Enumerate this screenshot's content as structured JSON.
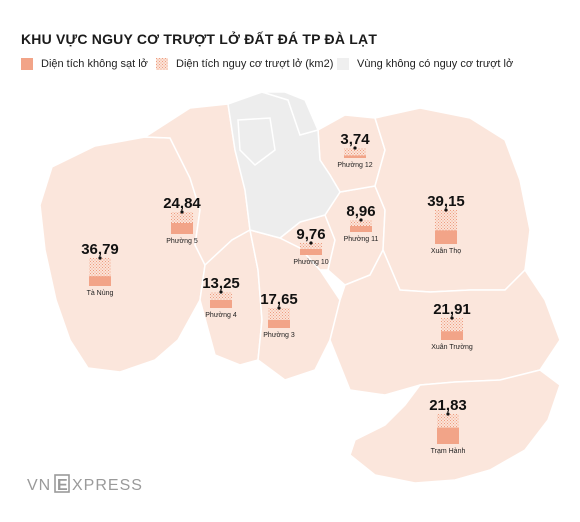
{
  "title": "KHU VỰC NGUY CƠ TRƯỢT LỞ ĐẤT ĐÁ TP ĐÀ LẠT",
  "legend": [
    {
      "label": "Diện tích không sạt lở",
      "color": "#f2a488"
    },
    {
      "label": "Diện tích nguy cơ trượt lở (km2)",
      "color": "#fbe3d8"
    },
    {
      "label": "Vùng không có nguy cơ trượt lở",
      "color": "#efefef"
    }
  ],
  "colors": {
    "risk": "#fbe6dc",
    "safe": "#ededed",
    "solid": "#f2a488",
    "hatch": "#f0a586",
    "border": "#ffffff"
  },
  "regions": [
    {
      "id": "phuong-12",
      "name": "Phường 12",
      "value": "3,74",
      "safe_fraction": 0.25
    },
    {
      "id": "xuan-tho",
      "name": "Xuân Thọ",
      "value": "39,15",
      "safe_fraction": 0.4
    },
    {
      "id": "phuong-5",
      "name": "Phường 5",
      "value": "24,84",
      "safe_fraction": 0.5
    },
    {
      "id": "phuong-11",
      "name": "Phường 11",
      "value": "8,96",
      "safe_fraction": 0.5
    },
    {
      "id": "phuong-10",
      "name": "Phường 10",
      "value": "9,76",
      "safe_fraction": 0.5
    },
    {
      "id": "ta-nung",
      "name": "Tà Nùng",
      "value": "36,79",
      "safe_fraction": 0.35
    },
    {
      "id": "phuong-4",
      "name": "Phường 4",
      "value": "13,25",
      "safe_fraction": 0.5
    },
    {
      "id": "phuong-3",
      "name": "Phường 3",
      "value": "17,65",
      "safe_fraction": 0.4
    },
    {
      "id": "xuan-truong",
      "name": "Xuân Trường",
      "value": "21,91",
      "safe_fraction": 0.4
    },
    {
      "id": "tram-hanh",
      "name": "Trạm Hành",
      "value": "21,83",
      "safe_fraction": 0.55
    }
  ],
  "logo": {
    "text": "VNEXPRESS"
  }
}
